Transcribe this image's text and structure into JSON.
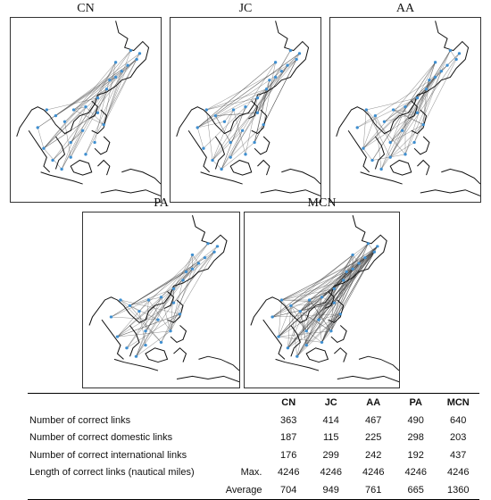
{
  "maps": [
    {
      "title": "CN"
    },
    {
      "title": "JC"
    },
    {
      "title": "AA"
    },
    {
      "title": "PA"
    },
    {
      "title": "MCN"
    }
  ],
  "table": {
    "columns": [
      "CN",
      "JC",
      "AA",
      "PA",
      "MCN"
    ],
    "rows": [
      {
        "label": "Number of correct links",
        "sublabel": "",
        "values": [
          "363",
          "414",
          "467",
          "490",
          "640"
        ]
      },
      {
        "label": "Number of correct domestic links",
        "sublabel": "",
        "values": [
          "187",
          "115",
          "225",
          "298",
          "203"
        ]
      },
      {
        "label": "Number of correct international links",
        "sublabel": "",
        "values": [
          "176",
          "299",
          "242",
          "192",
          "437"
        ]
      },
      {
        "label": "Length of correct links (nautical miles)",
        "sublabel": "Max.",
        "values": [
          "4246",
          "4246",
          "4246",
          "4246",
          "4246"
        ]
      },
      {
        "label": "",
        "sublabel": "Average",
        "values": [
          "704",
          "949",
          "761",
          "665",
          "1360"
        ]
      }
    ]
  },
  "colors": {
    "port": "#3f8fd0",
    "coast": "#111111",
    "link": "#3a3a3a"
  }
}
